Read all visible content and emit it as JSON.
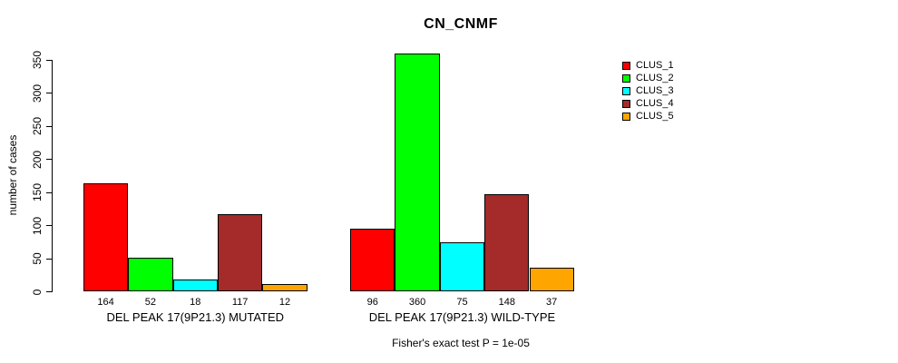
{
  "chart_data": {
    "type": "bar",
    "title": "CN_CNMF",
    "ylabel": "number of cases",
    "xlabel": "",
    "ylim": [
      0,
      360
    ],
    "yticks": [
      0,
      50,
      100,
      150,
      200,
      250,
      300,
      350
    ],
    "grid": false,
    "legend_position": "top-right-inside",
    "bar_value_labels": true,
    "categories": [
      "DEL PEAK 17(9P21.3) MUTATED",
      "DEL PEAK 17(9P21.3) WILD-TYPE"
    ],
    "series": [
      {
        "name": "CLUS_1",
        "color": "#FF0000",
        "values": [
          164,
          96
        ]
      },
      {
        "name": "CLUS_2",
        "color": "#00FF00",
        "values": [
          52,
          360
        ]
      },
      {
        "name": "CLUS_3",
        "color": "#00FFFF",
        "values": [
          18,
          75
        ]
      },
      {
        "name": "CLUS_4",
        "color": "#A52A2A",
        "values": [
          117,
          148
        ]
      },
      {
        "name": "CLUS_5",
        "color": "#FFA500",
        "values": [
          12,
          37
        ]
      }
    ],
    "annotation": "Fisher's exact test P = 1e-05"
  },
  "colors": {
    "axis": "#000000",
    "background": "#FFFFFF",
    "clus_1": "#FF0000",
    "clus_2": "#00FF00",
    "clus_3": "#00FFFF",
    "clus_4": "#A52A2A",
    "clus_5": "#FFA500"
  }
}
